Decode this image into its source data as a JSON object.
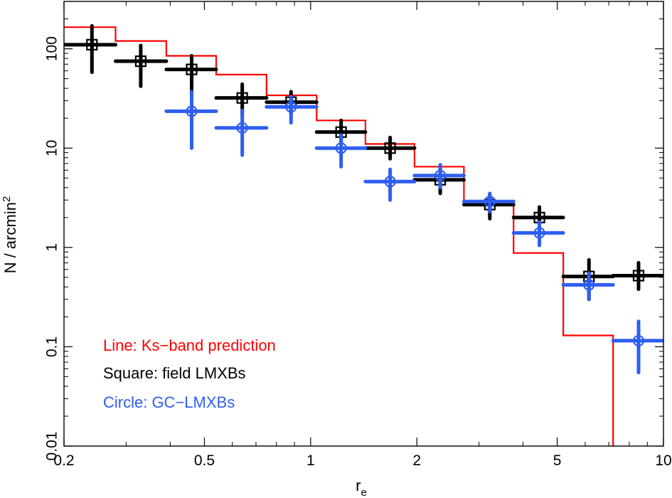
{
  "chart_data": {
    "type": "scatter",
    "title": "",
    "xlabel": "r",
    "xlabel_sub": "e",
    "ylabel": "N / arcmin",
    "ylabel_sup": "2",
    "xscale": "log",
    "yscale": "log",
    "xlim": [
      0.2,
      10
    ],
    "ylim": [
      0.01,
      300
    ],
    "grid": false,
    "x_ticks": [
      {
        "value": 0.2,
        "label": "0.2"
      },
      {
        "value": 0.5,
        "label": "0.5"
      },
      {
        "value": 1,
        "label": "1"
      },
      {
        "value": 2,
        "label": "2"
      },
      {
        "value": 5,
        "label": "5"
      },
      {
        "value": 10,
        "label": "10"
      }
    ],
    "y_ticks": [
      {
        "value": 0.01,
        "label": "0.01"
      },
      {
        "value": 0.1,
        "label": "0.1"
      },
      {
        "value": 1,
        "label": "1"
      },
      {
        "value": 10,
        "label": "10"
      },
      {
        "value": 100,
        "label": "100"
      }
    ],
    "legend": {
      "placement": "bottom-left",
      "entries": [
        {
          "text": "Line: Ks−band prediction",
          "color": "#ff0000"
        },
        {
          "text": "Square: field LMXBs",
          "color": "#000000"
        },
        {
          "text": "Circle: GC−LMXBs",
          "color": "#2e5ef0"
        }
      ]
    },
    "series": [
      {
        "name": "Line: Ks−band prediction",
        "kind": "step",
        "color": "#ff0000",
        "bin_edges": [
          0.2,
          0.28,
          0.39,
          0.54,
          0.75,
          1.04,
          1.43,
          1.97,
          2.72,
          3.76,
          5.2,
          7.2
        ],
        "values": [
          165,
          120,
          85,
          55,
          34,
          19,
          11,
          6.5,
          2.8,
          0.88,
          0.13
        ]
      },
      {
        "name": "Square: field LMXBs",
        "kind": "errorbar",
        "marker": "square",
        "color": "#000000",
        "points": [
          {
            "x": 0.24,
            "y": 110,
            "xlo": 0.2,
            "xhi": 0.28,
            "ylo": 58,
            "yhi": 170
          },
          {
            "x": 0.33,
            "y": 75,
            "xlo": 0.28,
            "xhi": 0.39,
            "ylo": 42,
            "yhi": 108
          },
          {
            "x": 0.46,
            "y": 62,
            "xlo": 0.39,
            "xhi": 0.54,
            "ylo": 36,
            "yhi": 85
          },
          {
            "x": 0.64,
            "y": 32,
            "xlo": 0.54,
            "xhi": 0.75,
            "ylo": 22,
            "yhi": 44
          },
          {
            "x": 0.88,
            "y": 29,
            "xlo": 0.75,
            "xhi": 1.04,
            "ylo": 22,
            "yhi": 37
          },
          {
            "x": 1.22,
            "y": 14.5,
            "xlo": 1.04,
            "xhi": 1.43,
            "ylo": 11,
            "yhi": 19
          },
          {
            "x": 1.68,
            "y": 10,
            "xlo": 1.43,
            "xhi": 1.97,
            "ylo": 7.8,
            "yhi": 12.8
          },
          {
            "x": 2.33,
            "y": 4.8,
            "xlo": 1.97,
            "xhi": 2.72,
            "ylo": 3.5,
            "yhi": 6.4
          },
          {
            "x": 3.22,
            "y": 2.7,
            "xlo": 2.72,
            "xhi": 3.76,
            "ylo": 1.95,
            "yhi": 3.4
          },
          {
            "x": 4.45,
            "y": 2.0,
            "xlo": 3.76,
            "xhi": 5.2,
            "ylo": 1.5,
            "yhi": 2.55
          },
          {
            "x": 6.15,
            "y": 0.51,
            "xlo": 5.2,
            "xhi": 7.2,
            "ylo": 0.3,
            "yhi": 0.75
          },
          {
            "x": 8.5,
            "y": 0.52,
            "xlo": 7.2,
            "xhi": 10,
            "ylo": 0.38,
            "yhi": 0.7
          }
        ]
      },
      {
        "name": "Circle: GC−LMXBs",
        "kind": "errorbar",
        "marker": "circle",
        "color": "#2e5ef0",
        "points": [
          {
            "x": 0.46,
            "y": 23.5,
            "xlo": 0.39,
            "xhi": 0.54,
            "ylo": 10,
            "yhi": 37
          },
          {
            "x": 0.64,
            "y": 16,
            "xlo": 0.54,
            "xhi": 0.75,
            "ylo": 8.5,
            "yhi": 24
          },
          {
            "x": 0.88,
            "y": 26,
            "xlo": 0.75,
            "xhi": 1.04,
            "ylo": 18,
            "yhi": 33
          },
          {
            "x": 1.22,
            "y": 10,
            "xlo": 1.04,
            "xhi": 1.43,
            "ylo": 6.5,
            "yhi": 13.5
          },
          {
            "x": 1.68,
            "y": 4.6,
            "xlo": 1.43,
            "xhi": 1.97,
            "ylo": 3.0,
            "yhi": 6.1
          },
          {
            "x": 2.33,
            "y": 5.3,
            "xlo": 1.97,
            "xhi": 2.72,
            "ylo": 4.0,
            "yhi": 6.8
          },
          {
            "x": 3.22,
            "y": 2.9,
            "xlo": 2.72,
            "xhi": 3.76,
            "ylo": 2.3,
            "yhi": 3.5
          },
          {
            "x": 4.45,
            "y": 1.4,
            "xlo": 3.76,
            "xhi": 5.2,
            "ylo": 1.05,
            "yhi": 1.8
          },
          {
            "x": 6.15,
            "y": 0.42,
            "xlo": 5.2,
            "xhi": 7.2,
            "ylo": 0.3,
            "yhi": 0.55
          },
          {
            "x": 8.5,
            "y": 0.115,
            "xlo": 7.2,
            "xhi": 10,
            "ylo": 0.055,
            "yhi": 0.18
          }
        ]
      }
    ]
  }
}
